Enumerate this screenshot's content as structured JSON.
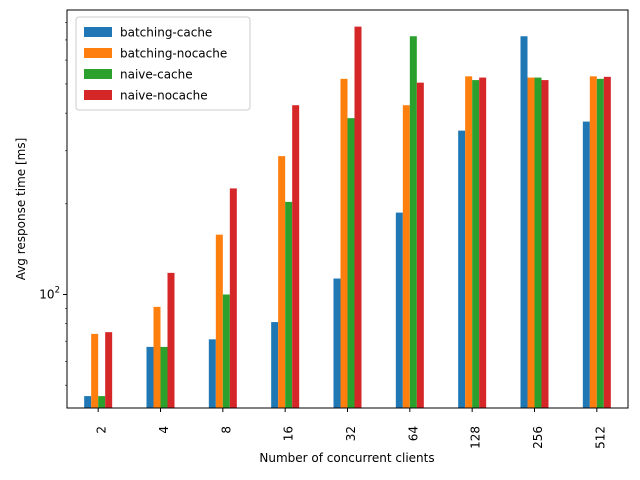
{
  "chart_data": {
    "type": "bar",
    "categories": [
      "2",
      "4",
      "8",
      "16",
      "32",
      "64",
      "128",
      "256",
      "512"
    ],
    "series": [
      {
        "name": "batching-cache",
        "color": "#1f77b4",
        "values": [
          46,
          67,
          71,
          81,
          113,
          187,
          350,
          720,
          375
        ]
      },
      {
        "name": "batching-nocache",
        "color": "#ff7f0e",
        "values": [
          74,
          91,
          158,
          288,
          520,
          425,
          530,
          525,
          530
        ]
      },
      {
        "name": "naive-cache",
        "color": "#2ca02c",
        "values": [
          46,
          67,
          100,
          203,
          385,
          720,
          515,
          525,
          520
        ]
      },
      {
        "name": "naive-nocache",
        "color": "#d62728",
        "values": [
          75,
          118,
          225,
          425,
          775,
          505,
          525,
          515,
          528
        ]
      }
    ],
    "xlabel": "Number of concurrent clients",
    "ylabel": "Avg response time [ms]",
    "yscale": "log",
    "ylim": [
      42,
      880
    ],
    "yticks_major": [
      100
    ],
    "ytick_labels": [
      "10^2"
    ],
    "legend_placement": "upper-left",
    "grid": false
  }
}
